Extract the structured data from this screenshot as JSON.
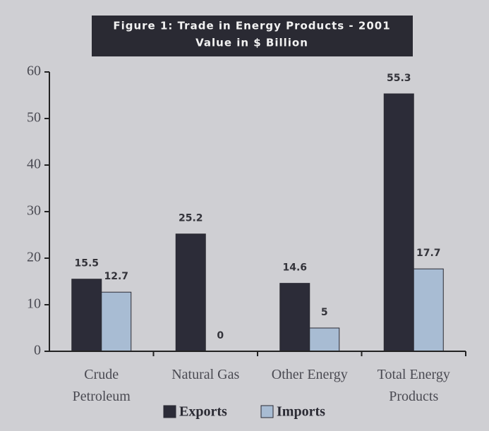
{
  "chart_data": {
    "type": "bar",
    "title": "Figure 1: Trade in Energy Products - 2001",
    "subtitle": "Value in $ Billion",
    "categories": [
      "Crude Petroleum",
      "Natural Gas",
      "Other Energy",
      "Total Energy Products"
    ],
    "series": [
      {
        "name": "Exports",
        "color": "#2c2c38",
        "values": [
          15.5,
          25.2,
          14.6,
          55.3
        ]
      },
      {
        "name": "Imports",
        "color": "#a8bcd3",
        "values": [
          12.7,
          0,
          5,
          17.7
        ]
      }
    ],
    "ylim": [
      0,
      60
    ],
    "yticks": [
      0,
      10,
      20,
      30,
      40,
      50,
      60
    ],
    "grid": false,
    "legend": "bottom"
  }
}
